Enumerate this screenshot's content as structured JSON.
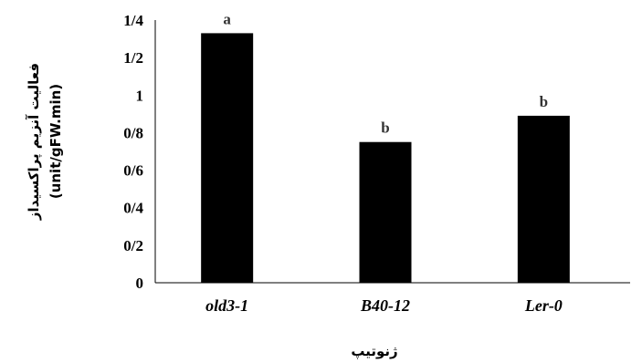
{
  "chart_data": {
    "type": "bar",
    "title": "",
    "xlabel": "ژنوتیپ",
    "ylabel": "فعالیت آنزیم پراکسیداز",
    "ylabel_unit": "(unit/gFW.min)",
    "categories": [
      "old3-1",
      "B40-12",
      "Ler-0"
    ],
    "values": [
      1.33,
      0.75,
      0.89
    ],
    "significance": [
      "a",
      "b",
      "b"
    ],
    "ylim": [
      0,
      1.4
    ],
    "yticks": [
      0,
      0.2,
      0.4,
      0.6,
      0.8,
      1,
      1.2,
      1.4
    ],
    "ytick_labels": [
      "0",
      "0/2",
      "0/4",
      "0/6",
      "0/8",
      "1",
      "1/2",
      "1/4"
    ],
    "grid": false,
    "legend": "none",
    "bar_color": "#000000"
  }
}
